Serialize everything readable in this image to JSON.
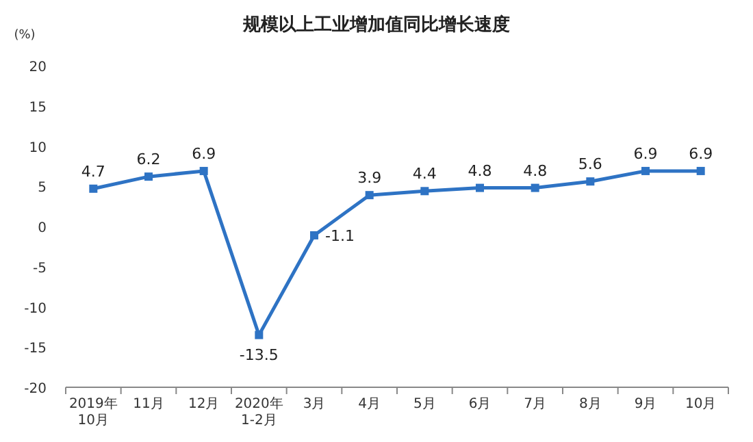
{
  "chart_data": {
    "type": "line",
    "title": "规模以上工业增加值同比增长速度",
    "ylabel": "(%)",
    "categories": [
      "2019年\n10月",
      "11月",
      "12月",
      "2020年\n1-2月",
      "3月",
      "4月",
      "5月",
      "6月",
      "7月",
      "8月",
      "9月",
      "10月"
    ],
    "series": [
      {
        "color": "#2e73c4",
        "values": [
          4.7,
          6.2,
          6.9,
          -13.5,
          -1.1,
          3.9,
          4.4,
          4.8,
          4.8,
          5.6,
          6.9,
          6.9
        ]
      }
    ],
    "ylim": [
      -20,
      20
    ],
    "yticks": [
      -20,
      -15,
      -10,
      -5,
      0,
      5,
      10,
      15,
      20
    ],
    "marker": "square",
    "data_labels": true,
    "grid": false
  }
}
